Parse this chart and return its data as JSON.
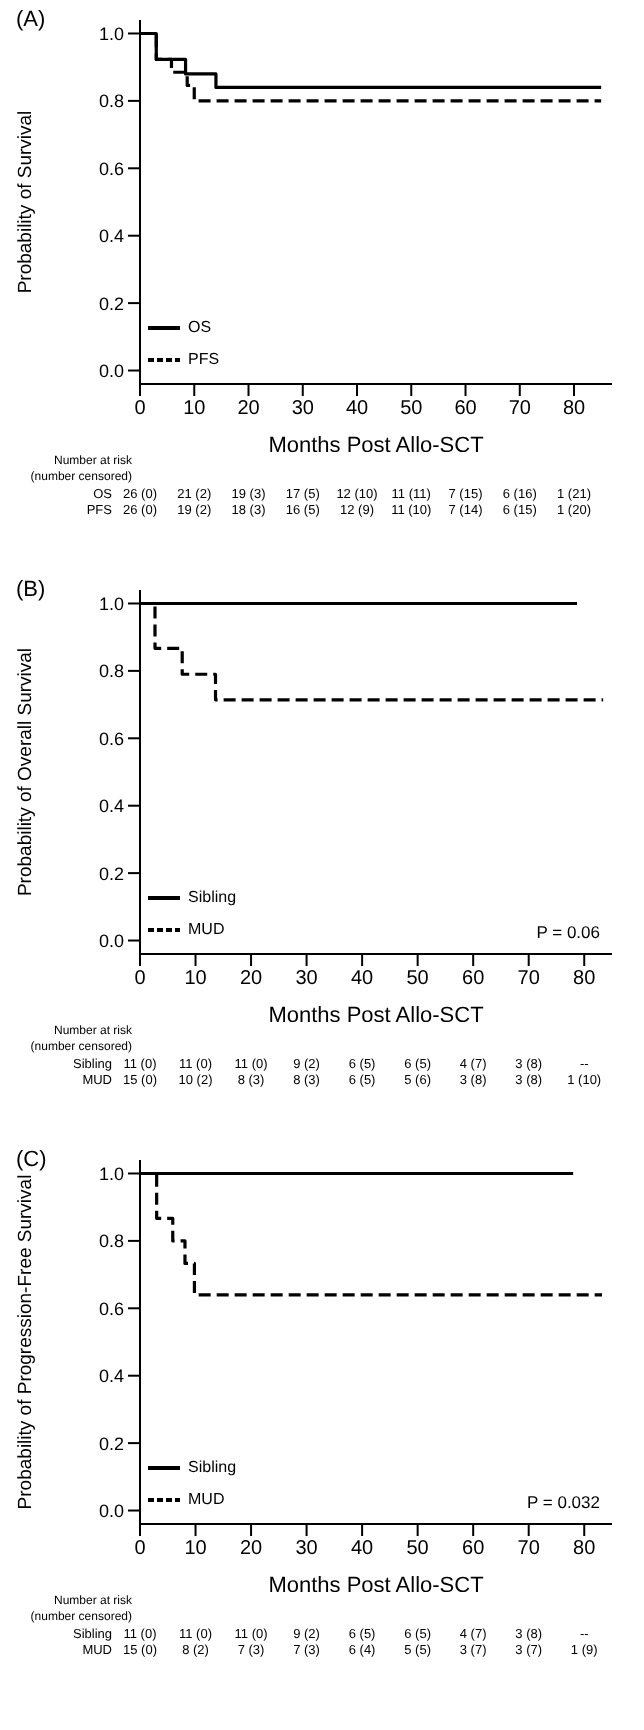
{
  "chart_data": [
    {
      "type": "step",
      "title": "(A)",
      "xlabel": "Months Post Allo-SCT",
      "ylabel": "Probability of Survival",
      "xlim": [
        0,
        87
      ],
      "ylim": [
        -0.04,
        1.04
      ],
      "xticks": [
        0,
        10,
        20,
        30,
        40,
        50,
        60,
        70,
        80
      ],
      "yticks": [
        {
          "value": 0,
          "label": "0.0"
        },
        {
          "value": 0.2,
          "label": "0.2"
        },
        {
          "value": 0.4,
          "label": "0.4"
        },
        {
          "value": 0.6,
          "label": "0.6"
        },
        {
          "value": 0.8,
          "label": "0.8"
        },
        {
          "value": 1,
          "label": "1.0"
        }
      ],
      "legend": "bottom left",
      "series": [
        {
          "name": "OS",
          "color": "#000000",
          "line_style": "solid",
          "x": [
            0,
            3,
            8.4,
            14,
            85
          ],
          "values": [
            1,
            0.923,
            0.88,
            0.84,
            0.84
          ]
        },
        {
          "name": "PFS",
          "color": "#000000",
          "line_style": "dashed",
          "x": [
            0,
            3,
            5.8,
            8.7,
            10,
            85
          ],
          "values": [
            1,
            0.923,
            0.885,
            0.846,
            0.8,
            0.8
          ]
        }
      ],
      "annotations": [
        "Number at risk",
        "(number censored)",
        "OS  26 (0)  21 (2)  19 (3)  17 (5)  12 (10)  11 (11)  7 (15)  6 (16)  1 (21)",
        "PFS  26 (0)  19 (2)  18 (3)  16 (5)  12 (9)  11 (10)  7 (14)  6 (15)  1 (20)"
      ]
    },
    {
      "type": "step",
      "title": "(B)",
      "xlabel": "Months Post Allo-SCT",
      "ylabel": "Probability of Overall Survival",
      "xlim": [
        0,
        85
      ],
      "ylim": [
        -0.04,
        1.04
      ],
      "xticks": [
        0,
        10,
        20,
        30,
        40,
        50,
        60,
        70,
        80
      ],
      "yticks": [
        {
          "value": 0,
          "label": "0.0"
        },
        {
          "value": 0.2,
          "label": "0.2"
        },
        {
          "value": 0.4,
          "label": "0.4"
        },
        {
          "value": 0.6,
          "label": "0.6"
        },
        {
          "value": 0.8,
          "label": "0.8"
        },
        {
          "value": 1,
          "label": "1.0"
        }
      ],
      "legend": "bottom left",
      "series": [
        {
          "name": "Sibling",
          "color": "#000000",
          "line_style": "solid",
          "x": [
            0,
            78.7
          ],
          "values": [
            1,
            1
          ]
        },
        {
          "name": "MUD",
          "color": "#000000",
          "line_style": "dashed",
          "x": [
            0,
            2.7,
            7.6,
            13.6,
            83.4
          ],
          "values": [
            1,
            0.867,
            0.79,
            0.714,
            0.714
          ]
        }
      ],
      "annotations": [
        {
          "text": "P = 0.06"
        },
        "Number at risk",
        "(number censored)",
        "Sibling  11 (0)  11 (0)  11 (0)  9 (2)  6 (5)  6 (5)  4 (7)  3 (8)  --",
        "MUD  15 (0)  10 (2)  8 (3)  8 (3)  6 (5)  5 (6)  3 (8)  3 (8)  1 (10)"
      ]
    },
    {
      "type": "step",
      "title": "(C)",
      "xlabel": "Months Post Allo-SCT",
      "ylabel": "Probability of Progression-Free Survival",
      "xlim": [
        0,
        85
      ],
      "ylim": [
        -0.04,
        1.04
      ],
      "xticks": [
        0,
        10,
        20,
        30,
        40,
        50,
        60,
        70,
        80
      ],
      "yticks": [
        {
          "value": 0,
          "label": "0.0"
        },
        {
          "value": 0.2,
          "label": "0.2"
        },
        {
          "value": 0.4,
          "label": "0.4"
        },
        {
          "value": 0.6,
          "label": "0.6"
        },
        {
          "value": 0.8,
          "label": "0.8"
        },
        {
          "value": 1,
          "label": "1.0"
        }
      ],
      "legend": "bottom left",
      "series": [
        {
          "name": "Sibling",
          "color": "#000000",
          "line_style": "solid",
          "x": [
            0,
            78
          ],
          "values": [
            1,
            1
          ]
        },
        {
          "name": "MUD",
          "color": "#000000",
          "line_style": "dashed",
          "x": [
            0,
            3,
            5.9,
            8.1,
            9.8,
            83.2
          ],
          "values": [
            1,
            0.867,
            0.8,
            0.733,
            0.64,
            0.64
          ]
        }
      ],
      "annotations": [
        {
          "text": "P = 0.032"
        },
        "Number at risk",
        "(number censored)",
        "Sibling  11 (0)  11 (0)  11 (0)  9 (2)  6 (5)  6 (5)  4 (7)  3 (8)  --",
        "MUD  15 (0)  8 (2)  7 (3)  7 (3)  6 (4)  5 (5)  3 (7)  3 (7)  1 (9)"
      ]
    }
  ]
}
